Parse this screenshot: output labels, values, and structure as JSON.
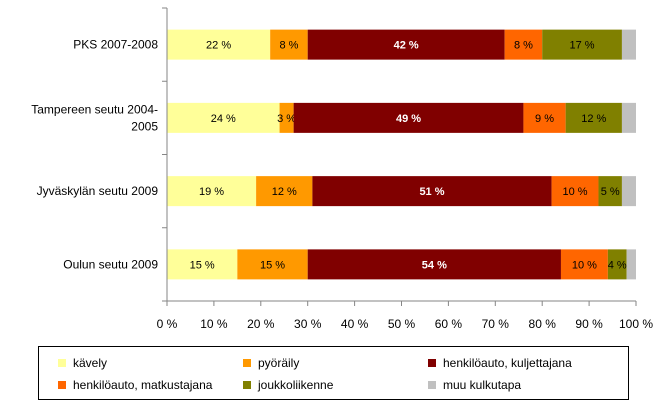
{
  "chart_data": {
    "type": "bar",
    "orientation": "horizontal",
    "stacked": true,
    "categories": [
      [
        "PKS 2007-2008"
      ],
      [
        "Tampereen seutu 2004-",
        "2005"
      ],
      [
        "Jyväskylän seutu 2009"
      ],
      [
        "Oulun seutu 2009"
      ]
    ],
    "series": [
      {
        "name": "kävely",
        "color": "#FFFF99",
        "label_color": "#000000",
        "values": [
          22,
          24,
          19,
          15
        ]
      },
      {
        "name": "pyöräily",
        "color": "#FF9900",
        "label_color": "#000000",
        "values": [
          8,
          3,
          12,
          15
        ]
      },
      {
        "name": "henkilöauto, kuljettajana",
        "color": "#800000",
        "label_color": "#FFFFFF",
        "values": [
          42,
          49,
          51,
          54
        ]
      },
      {
        "name": "henkilöauto, matkustajana",
        "color": "#FF6600",
        "label_color": "#000000",
        "values": [
          8,
          9,
          10,
          10
        ]
      },
      {
        "name": "joukkoliikenne",
        "color": "#808000",
        "label_color": "#000000",
        "values": [
          17,
          12,
          5,
          4
        ]
      },
      {
        "name": "muu kulkutapa",
        "color": "#C0C0C0",
        "label_color": "#000000",
        "values": [
          3,
          3,
          3,
          2
        ]
      }
    ],
    "data_labels": [
      [
        "22 %",
        "8 %",
        "42 %",
        "8 %",
        "17 %",
        ""
      ],
      [
        "24 %",
        "3 %",
        "49 %",
        "9 %",
        "12 %",
        ""
      ],
      [
        "19 %",
        "12 %",
        "51 %",
        "10 %",
        "5 %",
        ""
      ],
      [
        "15 %",
        "15 %",
        "54 %",
        "10 %",
        "4 %",
        ""
      ]
    ],
    "xlim": [
      0,
      100
    ],
    "x_ticks": [
      "0 %",
      "10 %",
      "20 %",
      "30 %",
      "40 %",
      "50 %",
      "60 %",
      "70 %",
      "80 %",
      "90 %",
      "100 %"
    ],
    "grid": false,
    "legend_placement": "bottom",
    "title": "",
    "xlabel": "",
    "ylabel": ""
  }
}
